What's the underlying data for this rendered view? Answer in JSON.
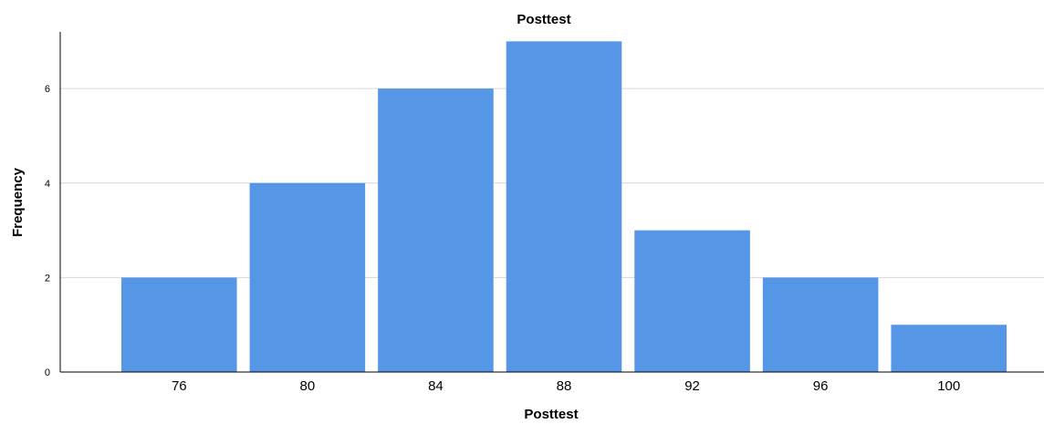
{
  "chart_data": {
    "type": "bar",
    "title": "Posttest",
    "xlabel": "Posttest",
    "ylabel": "Frequency",
    "categories": [
      "76",
      "80",
      "84",
      "88",
      "92",
      "96",
      "100"
    ],
    "values": [
      2,
      4,
      6,
      7,
      3,
      2,
      1
    ],
    "yticks": [
      0,
      2,
      4,
      6
    ],
    "ylim": [
      0,
      7.2
    ],
    "grid": true,
    "bar_color": "#5596e6",
    "background_color": "#ffffff",
    "grid_color": "#d6d6d6"
  }
}
